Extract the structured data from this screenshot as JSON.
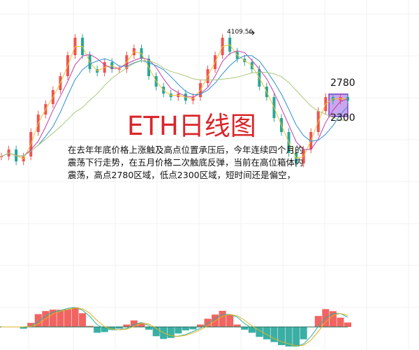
{
  "chart_data": {
    "type": "line",
    "subtype": "candlestick-with-moving-averages",
    "title": "ETH日线图",
    "annotation": "在去年年底价格上涨触及高点位置承压后，今年连续四个月的震荡下行走势，在五月价格二次触底反弹，当前在高位箱体内震荡，高点2780区域，低点2300区域，短时间还是偏空，",
    "max_label": "4109.56",
    "box": {
      "high_label": "2780",
      "low_label": "2300",
      "high": 2780,
      "low": 2300,
      "color": "#c9a7f0",
      "border": "#7b3fc4"
    },
    "close": [
      1440,
      1590,
      1335,
      1440,
      1965,
      2340,
      2565,
      2865,
      3165,
      3615,
      3990,
      3615,
      3315,
      3240,
      3465,
      3315,
      3315,
      3615,
      3765,
      3540,
      3165,
      2940,
      2790,
      2715,
      2790,
      2640,
      2715,
      3015,
      3315,
      3615,
      3990,
      3690,
      3540,
      3465,
      3315,
      2940,
      2715,
      2265,
      1965,
      1515,
      1290,
      1590,
      1965,
      2415,
      2715,
      2640,
      2715,
      2640
    ],
    "ylim": [
      300,
      4800
    ],
    "grid": true,
    "colors": {
      "title": "#d9262b",
      "up": "#ef5350",
      "down": "#26a69a",
      "ma_short": "#f2c12e",
      "ma_mid": "#c33fa4",
      "ma_long": "#2f8fd0",
      "ma_longest": "#a8c97a"
    }
  }
}
